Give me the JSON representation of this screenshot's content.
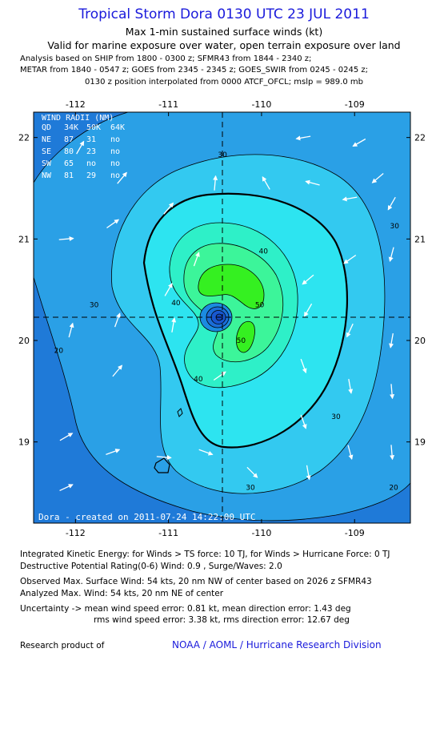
{
  "header": {
    "title": "Tropical Storm Dora 0130 UTC 23 JUL 2011",
    "subtitle1": "Max 1-min sustained surface winds (kt)",
    "subtitle2": "Valid for marine exposure over water, open terrain exposure over land",
    "analysis1": "Analysis based on SHIP from 1800 - 0300 z; SFMR43 from 1844 - 2340 z;",
    "analysis2": "METAR from 1840 - 0547 z; GOES from 2345 - 2345 z; GOES_SWIR from 0245 - 0245 z;",
    "analysis3": "0130 z position interpolated from 0000 ATCF_OFCL; mslp = 989.0 mb"
  },
  "wind_radii": {
    "title": "WIND RADII (NM)",
    "header": [
      "QD",
      "34K",
      "50K",
      "64K"
    ],
    "rows": [
      [
        "NE",
        "87",
        "31",
        "no"
      ],
      [
        "SE",
        "80",
        "23",
        "no"
      ],
      [
        "SW",
        "65",
        "no",
        "no"
      ],
      [
        "NW",
        "81",
        "29",
        "no"
      ]
    ]
  },
  "credit": "Dora - created on 2011-07-24 14:22:00 UTC",
  "footer": {
    "ike": "Integrated Kinetic Energy:  for Winds > TS force: 10 TJ,  for Winds > Hurricane Force: 0 TJ",
    "dpr": "Destructive Potential Rating(0-6)   Wind: 0.9 , Surge/Waves: 2.0",
    "obs": "Observed Max. Surface Wind: 54 kts, 20 nm NW of center based on 2026 z SFMR43",
    "analyzed": "Analyzed Max. Wind: 54 kts, 20 nm NE of center",
    "unc1": "Uncertainty -> mean wind speed error: 0.81 kt,   mean direction error: 1.43 deg",
    "unc2": "rms wind speed error: 3.38 kt,   rms direction error: 12.67 deg",
    "research": "Research product of",
    "org": "NOAA / AOML / Hurricane Research Division"
  },
  "colors": {
    "bg_low": "#1f7ad8",
    "c20": "#2aa0e6",
    "c30": "#33c9f0",
    "c34": "#2de4f0",
    "c40": "#2ef0c8",
    "c50": "#3cf59a",
    "core": "#35f021",
    "eye": "#1858d0",
    "title": "#1a1adb"
  },
  "chart_data": {
    "type": "contour",
    "variable": "Max 1-min sustained surface winds (kt)",
    "x_ticks": [
      "-112",
      "-111",
      "-110",
      "-109"
    ],
    "y_ticks": [
      "22",
      "21",
      "20",
      "19"
    ],
    "x_range": [
      -112.45,
      -108.4
    ],
    "y_range": [
      18.2,
      22.25
    ],
    "center": {
      "lon": -110.38,
      "lat": 20.22
    },
    "contour_levels": [
      20,
      30,
      34,
      40,
      50
    ],
    "contour_labels": [
      {
        "text": "30",
        "lon": -110.42,
        "lat": 21.83
      },
      {
        "text": "30",
        "lon": -108.57,
        "lat": 21.13
      },
      {
        "text": "30",
        "lon": -111.8,
        "lat": 20.35
      },
      {
        "text": "20",
        "lon": -112.18,
        "lat": 19.9
      },
      {
        "text": "30",
        "lon": -109.2,
        "lat": 19.25
      },
      {
        "text": "40",
        "lon": -109.98,
        "lat": 20.88
      },
      {
        "text": "40",
        "lon": -110.92,
        "lat": 20.37
      },
      {
        "text": "40",
        "lon": -110.68,
        "lat": 19.62
      },
      {
        "text": "50",
        "lon": -110.02,
        "lat": 20.35
      },
      {
        "text": "50",
        "lon": -110.22,
        "lat": 20.0
      },
      {
        "text": "30",
        "lon": -110.12,
        "lat": 18.55
      },
      {
        "text": "20",
        "lon": -108.58,
        "lat": 18.55
      }
    ],
    "wind_vectors": [
      {
        "lon": -112.1,
        "lat": 21.0,
        "dir": 85
      },
      {
        "lon": -111.6,
        "lat": 21.15,
        "dir": 55
      },
      {
        "lon": -111.0,
        "lat": 21.3,
        "dir": 40
      },
      {
        "lon": -110.5,
        "lat": 21.55,
        "dir": 5
      },
      {
        "lon": -109.95,
        "lat": 21.55,
        "dir": -30
      },
      {
        "lon": -109.45,
        "lat": 21.55,
        "dir": -75
      },
      {
        "lon": -109.05,
        "lat": 21.4,
        "dir": -100
      },
      {
        "lon": -108.75,
        "lat": 21.6,
        "dir": -130
      },
      {
        "lon": -109.55,
        "lat": 22.0,
        "dir": -100
      },
      {
        "lon": -108.95,
        "lat": 21.95,
        "dir": -120
      },
      {
        "lon": -108.6,
        "lat": 21.35,
        "dir": -150
      },
      {
        "lon": -108.6,
        "lat": 20.85,
        "dir": -165
      },
      {
        "lon": -109.05,
        "lat": 20.8,
        "dir": -125
      },
      {
        "lon": -109.5,
        "lat": 20.6,
        "dir": -130
      },
      {
        "lon": -109.5,
        "lat": 20.3,
        "dir": -150
      },
      {
        "lon": -109.05,
        "lat": 20.1,
        "dir": -155
      },
      {
        "lon": -108.6,
        "lat": 20.0,
        "dir": -170
      },
      {
        "lon": -108.6,
        "lat": 19.5,
        "dir": 175
      },
      {
        "lon": -109.05,
        "lat": 19.55,
        "dir": 170
      },
      {
        "lon": -109.55,
        "lat": 19.75,
        "dir": 160
      },
      {
        "lon": -109.55,
        "lat": 19.2,
        "dir": 160
      },
      {
        "lon": -109.05,
        "lat": 18.9,
        "dir": 165
      },
      {
        "lon": -108.6,
        "lat": 18.9,
        "dir": 175
      },
      {
        "lon": -109.5,
        "lat": 18.7,
        "dir": 170
      },
      {
        "lon": -110.1,
        "lat": 18.7,
        "dir": 135
      },
      {
        "lon": -110.6,
        "lat": 18.9,
        "dir": 110
      },
      {
        "lon": -111.05,
        "lat": 18.85,
        "dir": 95
      },
      {
        "lon": -111.6,
        "lat": 18.9,
        "dir": 70
      },
      {
        "lon": -112.1,
        "lat": 19.05,
        "dir": 60
      },
      {
        "lon": -112.1,
        "lat": 18.55,
        "dir": 65
      },
      {
        "lon": -111.55,
        "lat": 19.7,
        "dir": 40
      },
      {
        "lon": -112.05,
        "lat": 20.1,
        "dir": 15
      },
      {
        "lon": -111.55,
        "lat": 20.2,
        "dir": 20
      },
      {
        "lon": -111.0,
        "lat": 20.5,
        "dir": 30
      },
      {
        "lon": -110.95,
        "lat": 20.15,
        "dir": 10
      },
      {
        "lon": -110.45,
        "lat": 19.65,
        "dir": 55
      },
      {
        "lon": -110.7,
        "lat": 20.8,
        "dir": 20
      },
      {
        "lon": -111.95,
        "lat": 21.9,
        "dir": 30
      },
      {
        "lon": -111.5,
        "lat": 21.6,
        "dir": 40
      }
    ]
  }
}
